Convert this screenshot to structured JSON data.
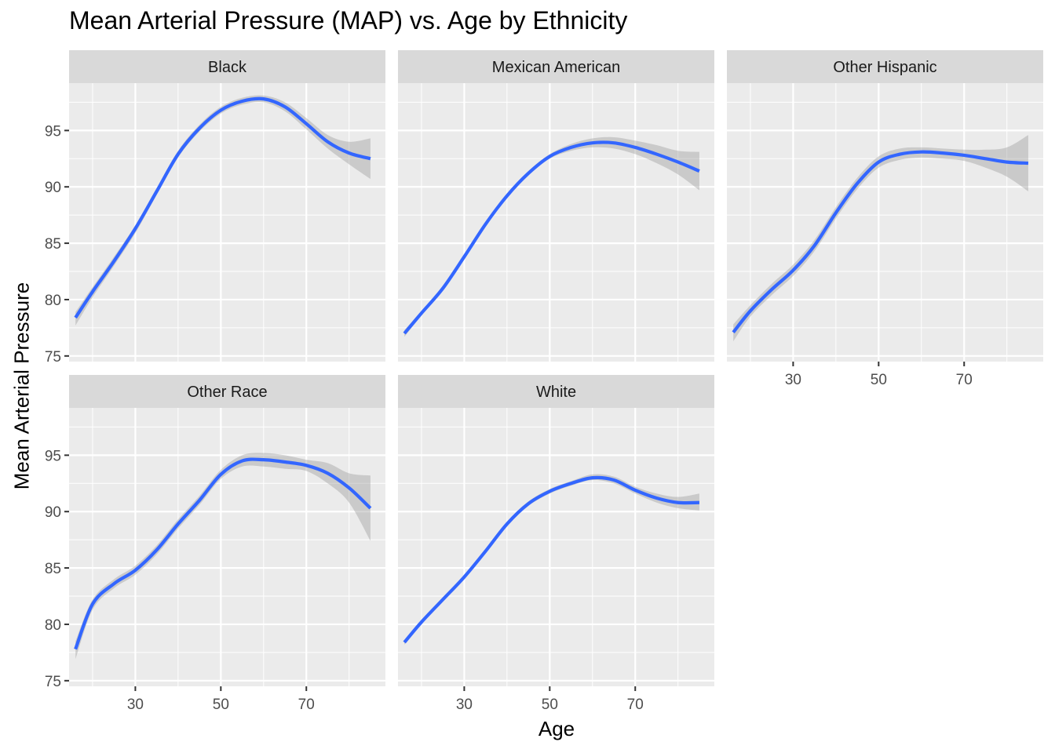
{
  "chart_data": {
    "type": "line",
    "title": "Mean Arterial Pressure (MAP) vs. Age by Ethnicity",
    "xlabel": "Age",
    "ylabel": "Mean Arterial Pressure",
    "xlim": [
      14.5,
      88.5
    ],
    "ylim": [
      74.5,
      99.2
    ],
    "x_ticks": [
      30,
      50,
      70
    ],
    "y_ticks": [
      75,
      80,
      85,
      90,
      95
    ],
    "x": [
      16,
      20,
      25,
      30,
      35,
      40,
      45,
      50,
      55,
      60,
      65,
      70,
      75,
      80,
      85
    ],
    "series": [
      {
        "name": "Black",
        "values": [
          78.4,
          80.7,
          83.4,
          86.3,
          89.6,
          92.9,
          95.2,
          96.8,
          97.6,
          97.8,
          97.1,
          95.6,
          94.0,
          93.0,
          92.5
        ],
        "ci_upper": [
          78.9,
          81.1,
          83.8,
          86.6,
          89.9,
          93.2,
          95.5,
          97.1,
          97.9,
          98.1,
          97.5,
          96.1,
          94.6,
          94.0,
          94.3
        ],
        "ci_lower": [
          77.7,
          80.2,
          83.0,
          85.9,
          89.3,
          92.6,
          94.9,
          96.5,
          97.3,
          97.5,
          96.7,
          95.1,
          93.4,
          92.0,
          90.7
        ]
      },
      {
        "name": "Mexican American",
        "values": [
          77.0,
          78.8,
          81.0,
          83.8,
          86.7,
          89.2,
          91.2,
          92.7,
          93.5,
          93.9,
          93.9,
          93.5,
          92.9,
          92.2,
          91.4
        ],
        "ci_upper": [
          77.3,
          79.0,
          81.2,
          84.0,
          86.9,
          89.4,
          91.4,
          92.9,
          93.8,
          94.3,
          94.4,
          94.1,
          93.7,
          93.2,
          93.1
        ],
        "ci_lower": [
          76.7,
          78.6,
          80.8,
          83.6,
          86.5,
          89.0,
          91.0,
          92.5,
          93.2,
          93.5,
          93.4,
          92.9,
          92.1,
          91.1,
          89.7
        ]
      },
      {
        "name": "Other Hispanic",
        "values": [
          77.1,
          79.0,
          80.9,
          82.6,
          84.8,
          87.7,
          90.3,
          92.2,
          92.9,
          93.1,
          93.0,
          92.8,
          92.5,
          92.2,
          92.1
        ],
        "ci_upper": [
          77.8,
          79.5,
          81.4,
          83.1,
          85.3,
          88.2,
          90.8,
          92.7,
          93.4,
          93.5,
          93.4,
          93.3,
          93.3,
          93.5,
          94.6
        ],
        "ci_lower": [
          76.3,
          78.5,
          80.4,
          82.1,
          84.3,
          87.2,
          89.8,
          91.7,
          92.4,
          92.6,
          92.5,
          92.3,
          91.7,
          90.9,
          89.6
        ]
      },
      {
        "name": "Other Race",
        "values": [
          77.8,
          81.8,
          83.6,
          84.8,
          86.6,
          88.9,
          91.0,
          93.3,
          94.5,
          94.6,
          94.4,
          94.1,
          93.4,
          92.1,
          90.3
        ],
        "ci_upper": [
          78.5,
          82.2,
          84.0,
          85.2,
          87.0,
          89.3,
          91.4,
          93.7,
          95.0,
          95.2,
          95.0,
          94.6,
          94.3,
          93.4,
          93.2
        ],
        "ci_lower": [
          76.9,
          81.3,
          83.2,
          84.4,
          86.2,
          88.5,
          90.6,
          92.9,
          94.0,
          94.0,
          93.8,
          93.6,
          92.5,
          90.8,
          87.4
        ]
      },
      {
        "name": "White",
        "values": [
          78.4,
          80.2,
          82.2,
          84.2,
          86.5,
          88.9,
          90.7,
          91.8,
          92.5,
          93.0,
          92.8,
          91.9,
          91.2,
          90.8,
          90.8
        ],
        "ci_upper": [
          78.6,
          80.4,
          82.4,
          84.4,
          86.7,
          89.1,
          90.9,
          92.0,
          92.7,
          93.3,
          93.1,
          92.2,
          91.6,
          91.3,
          91.6
        ],
        "ci_lower": [
          78.2,
          80.0,
          82.0,
          84.0,
          86.3,
          88.7,
          90.5,
          91.6,
          92.3,
          92.8,
          92.5,
          91.6,
          90.8,
          90.3,
          90.1
        ]
      }
    ],
    "facet_layout": "2 rows x 3 columns, 5 panels",
    "grid": true,
    "legend": "none",
    "colors": {
      "line": "#3366FF",
      "ribbon": "#999999",
      "panel_background": "#EBEBEB",
      "grid_major": "#FFFFFF",
      "strip_background": "#D9D9D9"
    }
  }
}
